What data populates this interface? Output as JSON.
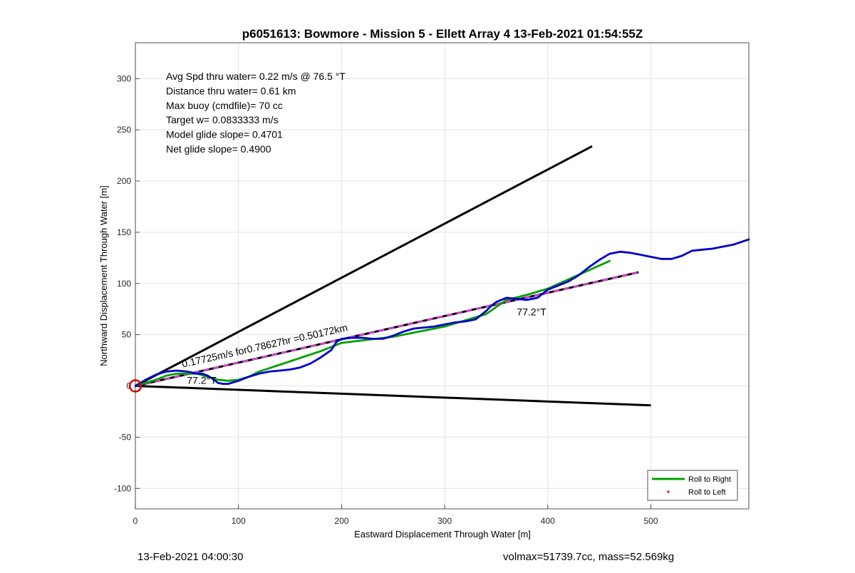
{
  "chart_data": {
    "type": "line",
    "title": "p6051613: Bowmore - Mission 5 - Ellett Array 4 13-Feb-2021 01:54:55Z",
    "xlabel": "Eastward Displacement Through Water [m]",
    "ylabel": "Northward Displacement Through Water [m]",
    "xlim": [
      0,
      595
    ],
    "ylim": [
      -120,
      335
    ],
    "x_ticks": [
      0,
      100,
      200,
      300,
      400,
      500
    ],
    "x_tick_labels": [
      "0",
      "100",
      "200",
      "300",
      "400",
      "500"
    ],
    "y_ticks": [
      -100,
      -50,
      0,
      50,
      100,
      150,
      200,
      250,
      300
    ],
    "y_tick_labels": [
      "-100",
      "-50",
      "0",
      "50",
      "100",
      "150",
      "200",
      "250",
      "300"
    ],
    "grid": true,
    "legend_position": "bottom-right",
    "legend": [
      {
        "label": "Roll to Right",
        "color": "#00a000",
        "style": "line"
      },
      {
        "label": "Roll to Left",
        "color": "#ff0000",
        "style": "dot"
      }
    ],
    "stats": [
      "Avg Spd thru water=  0.22 m/s @  76.5 °T",
      "Distance thru water=  0.61 km",
      "Max buoy (cmdfile)= 70 cc",
      "Target w= 0.0833333 m/s",
      "Model glide slope= 0.4701",
      "Net glide slope= 0.4900"
    ],
    "annotations": [
      {
        "text": "0.17725m/s for0.78627hr =0.50172km",
        "x": 46,
        "y": 18,
        "rotation": 12.6
      },
      {
        "text": "77.2°T",
        "x": 50,
        "y": 2,
        "rotation": 0
      },
      {
        "text": "77.2°T",
        "x": 370,
        "y": 69,
        "rotation": 0
      }
    ],
    "series": [
      {
        "color": "#0000cc",
        "x": [
          0,
          10,
          20,
          30,
          40,
          50,
          60,
          65,
          70,
          75,
          80,
          85,
          90,
          100,
          110,
          120,
          130,
          140,
          150,
          160,
          170,
          180,
          190,
          195,
          200,
          210,
          220,
          230,
          240,
          250,
          260,
          270,
          280,
          290,
          300,
          310,
          320,
          330,
          340,
          345,
          350,
          360,
          370,
          380,
          390,
          400,
          410,
          420,
          430,
          440,
          450,
          460,
          470,
          480,
          490,
          500,
          510,
          520,
          530,
          540,
          550,
          560,
          570,
          580,
          595
        ],
        "y": [
          0,
          6,
          11,
          14,
          15,
          14,
          12,
          12,
          10,
          7,
          3,
          2,
          2,
          5,
          9,
          12,
          14,
          15,
          16,
          18,
          22,
          28,
          35,
          43,
          46,
          47,
          47,
          46,
          46,
          49,
          53,
          56,
          57,
          58,
          60,
          62,
          63,
          65,
          73,
          78,
          82,
          86,
          85,
          84,
          86,
          94,
          98,
          102,
          108,
          116,
          123,
          129,
          131,
          130,
          128,
          126,
          124,
          124,
          127,
          132,
          133,
          134,
          136,
          138,
          143
        ]
      },
      {
        "name": "Roll to Right",
        "color": "#00a000",
        "x": [
          0,
          20,
          30,
          40,
          60,
          70,
          80,
          90,
          100,
          110,
          120,
          150,
          180,
          200,
          250,
          300,
          340,
          360,
          380,
          400,
          420,
          440,
          460
        ],
        "y": [
          0,
          6,
          10,
          12,
          12,
          9,
          6,
          5,
          6,
          9,
          14,
          24,
          34,
          42,
          48,
          58,
          70,
          84,
          89,
          95,
          104,
          113,
          122
        ]
      }
    ],
    "reference_lines": [
      {
        "name": "upper-bound",
        "color": "#000000",
        "x": [
          0,
          443
        ],
        "y": [
          0,
          234
        ]
      },
      {
        "name": "lower-bound",
        "color": "#000000",
        "x": [
          0,
          500
        ],
        "y": [
          0,
          -19
        ]
      },
      {
        "name": "net-track",
        "color": "#000000",
        "dash_color": "#e040e0",
        "x": [
          0,
          488
        ],
        "y": [
          0,
          111
        ]
      }
    ],
    "origin_marker": {
      "x": 0,
      "y": 0,
      "color": "#dd0000"
    }
  },
  "footer": {
    "timestamp": "13-Feb-2021 04:00:30",
    "mass_info": "volmax=51739.7cc, mass=52.569kg"
  }
}
